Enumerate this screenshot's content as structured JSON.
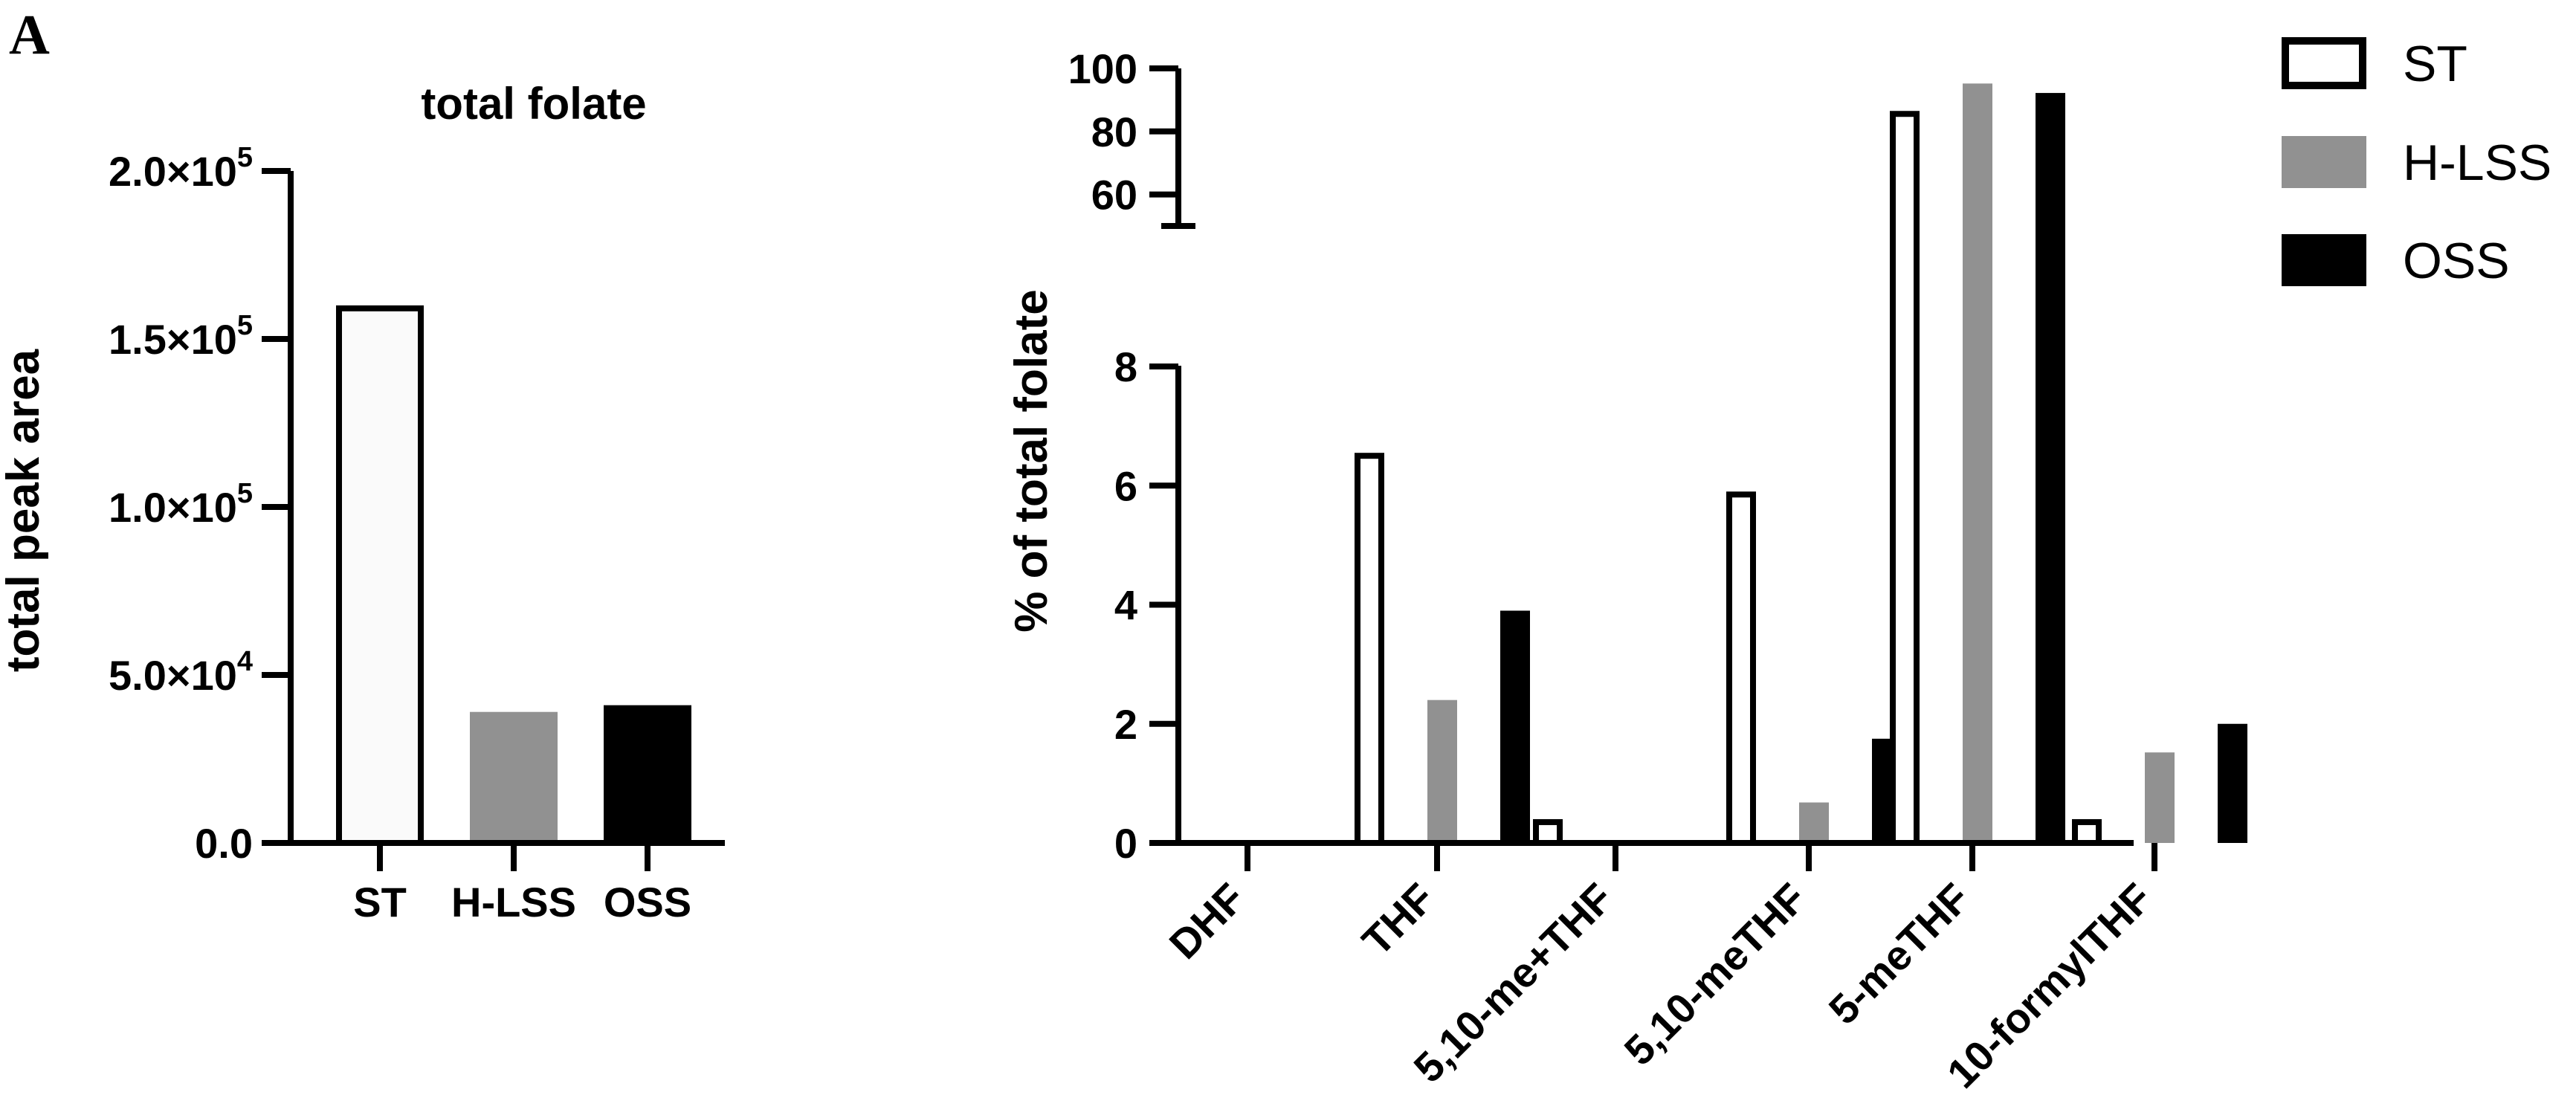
{
  "panel_label": "A",
  "legend": {
    "position": "top-right",
    "items": [
      {
        "label": "ST",
        "style": "outline",
        "color": "#000000"
      },
      {
        "label": "H-LSS",
        "style": "filled",
        "color": "#919191"
      },
      {
        "label": "OSS",
        "style": "filled",
        "color": "#000000"
      }
    ]
  },
  "chart_data": [
    {
      "type": "bar",
      "title": "total folate",
      "xlabel": "",
      "ylabel": "total peak area",
      "categories": [
        "ST",
        "H-LSS",
        "OSS"
      ],
      "values": [
        160000,
        39000,
        41000
      ],
      "colors": [
        "#fafafa",
        "#919191",
        "#000000"
      ],
      "ylim": [
        0,
        200000
      ],
      "yticks": [
        {
          "value": 0,
          "label": "0.0"
        },
        {
          "value": 50000,
          "label": "5.0×10",
          "exp": "4"
        },
        {
          "value": 100000,
          "label": "1.0×10",
          "exp": "5"
        },
        {
          "value": 150000,
          "label": "1.5×10",
          "exp": "5"
        },
        {
          "value": 200000,
          "label": "2.0×10",
          "exp": "5"
        }
      ],
      "grid": false
    },
    {
      "type": "bar",
      "title": "",
      "xlabel": "",
      "ylabel": "% of total folate",
      "categories": [
        "DHF",
        "THF",
        "5,10-me+THF",
        "5,10-meTHF",
        "5-meTHF",
        "10-formylTHF"
      ],
      "series": [
        {
          "name": "ST",
          "values": [
            0,
            6.55,
            0.4,
            5.9,
            86.5,
            0.4
          ]
        },
        {
          "name": "H-LSS",
          "values": [
            0,
            2.4,
            0,
            0.68,
            95.2,
            1.52
          ]
        },
        {
          "name": "OSS",
          "values": [
            0,
            3.9,
            0,
            1.75,
            92.2,
            2.0
          ]
        }
      ],
      "broken_axis": {
        "lower_range": [
          0,
          8
        ],
        "upper_range": [
          50,
          100
        ],
        "lower_ticks": [
          "0",
          "2",
          "4",
          "6",
          "8"
        ],
        "upper_ticks": [
          "60",
          "80",
          "100"
        ]
      },
      "grid": false
    }
  ]
}
